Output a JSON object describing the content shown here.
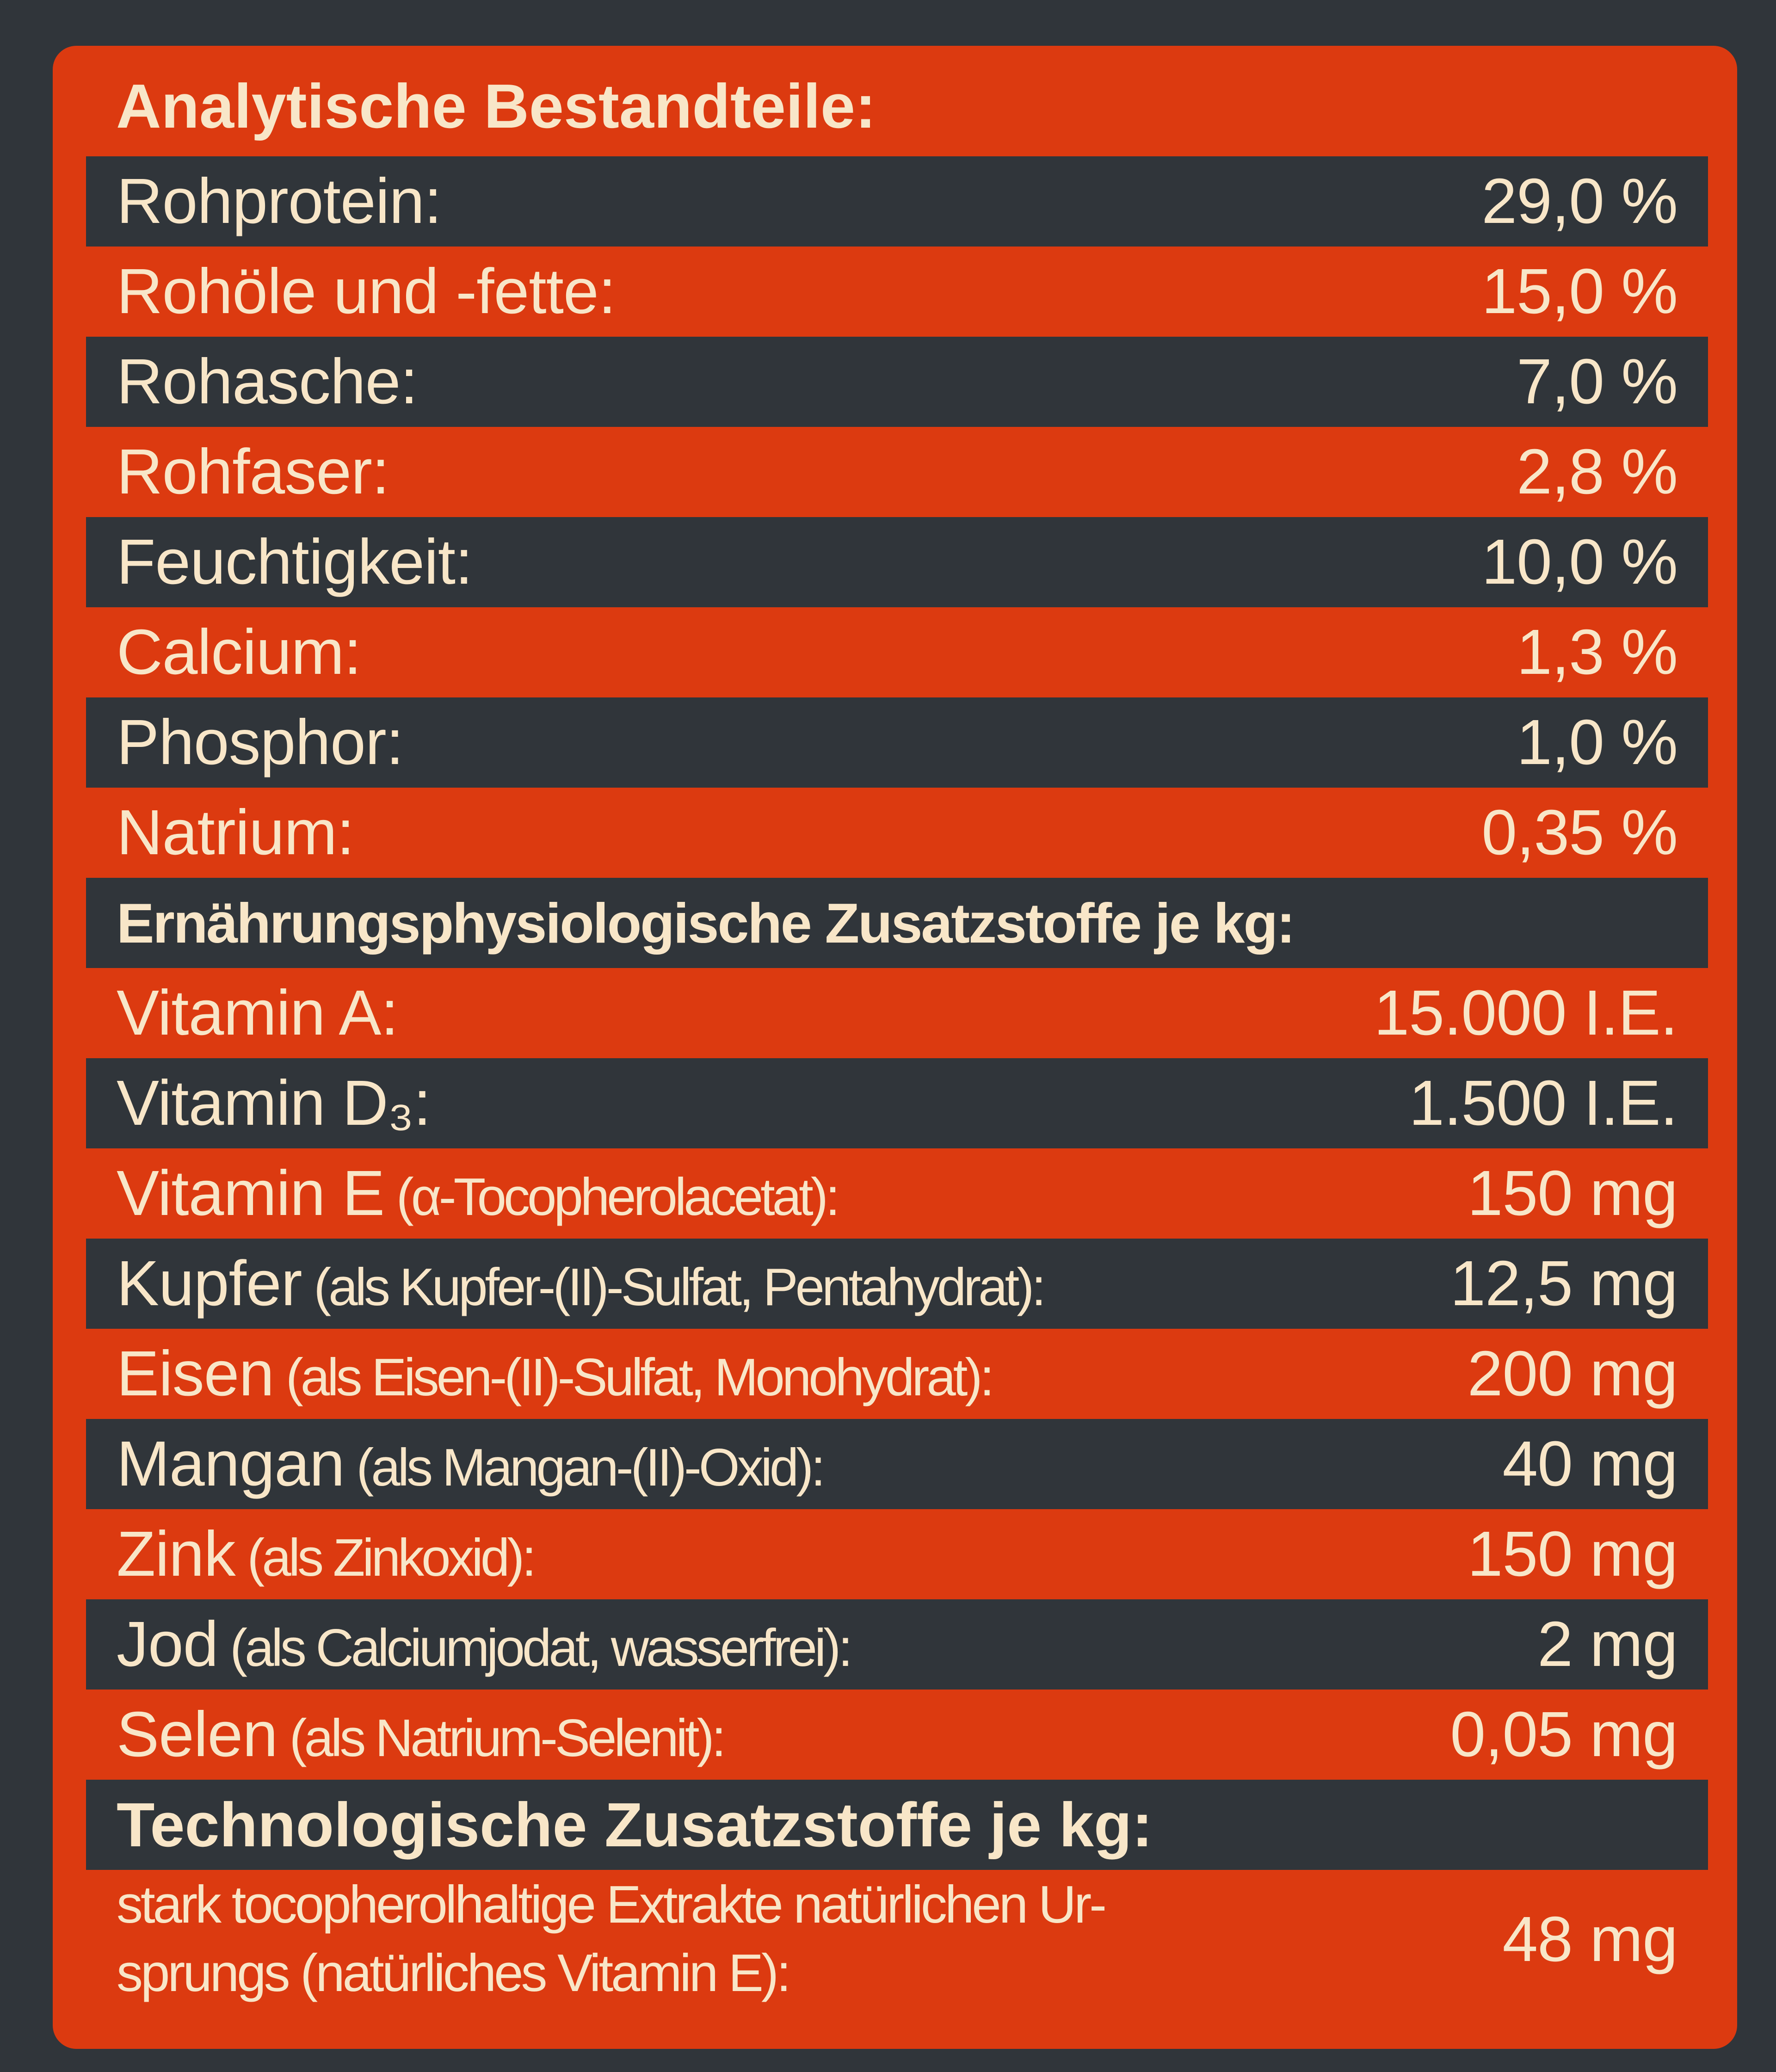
{
  "title": "Analytische Bestandteile:",
  "analytical": [
    {
      "label": "Rohprotein:",
      "value": "29,0 %"
    },
    {
      "label": "Rohöle und -fette:",
      "value": "15,0 %"
    },
    {
      "label": "Rohasche:",
      "value": "7,0 %"
    },
    {
      "label": "Rohfaser:",
      "value": "2,8 %"
    },
    {
      "label": "Feuchtigkeit:",
      "value": "10,0 %"
    },
    {
      "label": "Calcium:",
      "value": "1,3 %"
    },
    {
      "label": "Phosphor:",
      "value": "1,0 %"
    },
    {
      "label": "Natrium:",
      "value": "0,35 %"
    }
  ],
  "nutritional_heading": "Ernährungsphysiologische Zusatzstoffe je kg:",
  "nutritional": [
    {
      "label": "Vitamin A:",
      "note": "",
      "value": "15.000 I.E."
    },
    {
      "label": "Vitamin D₃:",
      "note": "",
      "value": "1.500 I.E."
    },
    {
      "label": "Vitamin E",
      "note": " (α-Tocopherolacetat):",
      "value": "150 mg"
    },
    {
      "label": "Kupfer",
      "note": " (als Kupfer-(II)-Sulfat, Pentahydrat):",
      "value": "12,5 mg"
    },
    {
      "label": "Eisen",
      "note": " (als Eisen-(II)-Sulfat, Monohydrat):",
      "value": "200 mg"
    },
    {
      "label": "Mangan",
      "note": " (als Mangan-(II)-Oxid):",
      "value": "40 mg"
    },
    {
      "label": "Zink",
      "note": " (als Zinkoxid):",
      "value": "150 mg"
    },
    {
      "label": "Jod",
      "note": " (als Calciumjodat, wasserfrei):",
      "value": "2 mg"
    },
    {
      "label": "Selen",
      "note": " (als Natrium-Selenit):",
      "value": "0,05 mg"
    }
  ],
  "technological_heading": "Technologische Zusatzstoffe je kg:",
  "technological": [
    {
      "label": "stark tocopherolhaltige Extrakte natürlichen Ur-sprungs (natürliches Vitamin E):",
      "value": "48 mg"
    }
  ]
}
